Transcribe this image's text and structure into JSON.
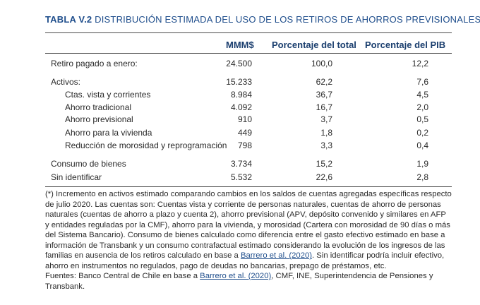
{
  "title": {
    "tag": "TABLA V.2",
    "caption": "DISTRIBUCIÓN ESTIMADA DEL USO DE LOS RETIROS DE AHORROS PREVISIONALES (*)"
  },
  "table": {
    "columns": [
      "MMM$",
      "Porcentaje del total",
      "Porcentaje del PIB"
    ],
    "rows": [
      {
        "label": "Retiro pagado a enero:",
        "mmm": "24.500",
        "pct_total": "100,0",
        "pct_pib": "12,2"
      },
      {
        "label": "Activos:",
        "mmm": "15.233",
        "pct_total": "62,2",
        "pct_pib": "7,6"
      },
      {
        "label": "Ctas. vista y corrientes",
        "mmm": "8.984",
        "pct_total": "36,7",
        "pct_pib": "4,5"
      },
      {
        "label": "Ahorro tradicional",
        "mmm": "4.092",
        "pct_total": "16,7",
        "pct_pib": "2,0"
      },
      {
        "label": "Ahorro previsional",
        "mmm": "910",
        "pct_total": "3,7",
        "pct_pib": "0,5"
      },
      {
        "label": "Ahorro para la vivienda",
        "mmm": "449",
        "pct_total": "1,8",
        "pct_pib": "0,2"
      },
      {
        "label": "Reducción de morosidad y reprogramación",
        "mmm": "798",
        "pct_total": "3,3",
        "pct_pib": "0,4"
      },
      {
        "label": "Consumo de bienes",
        "mmm": "3.734",
        "pct_total": "15,2",
        "pct_pib": "1,9"
      },
      {
        "label": "Sin identificar",
        "mmm": "5.532",
        "pct_total": "22,6",
        "pct_pib": "2,8"
      }
    ]
  },
  "notes": {
    "note_before_link": "(*) Incremento en activos estimado comparando cambios en los saldos de cuentas agregadas específicas respecto de julio 2020. Las cuentas son: Cuentas vista y corriente de personas naturales, cuentas de ahorro de personas naturales (cuentas de ahorro a plazo y cuenta 2), ahorro previsional (APV, depósito convenido y similares en AFP y entidades reguladas por la CMF), ahorro para la vivienda, y morosidad (Cartera con morosidad de 90 días o más del Sistema Bancario). Consumo de bienes calculado como diferencia entre el gasto efectivo estimado en base a información de Transbank y un consumo contrafactual estimado considerando la evolución de los ingresos de las familias en ausencia de los retiros calculado en base a",
    "note_link": "Barrero et al. (2020)",
    "note_after_link": ". Sin identificar podría incluir efectivo, ahorro en instrumentos no regulados, pago de deudas no bancarias, prepago de préstamos, etc.",
    "sources_before_link": "Fuentes: Banco Central de Chile en base a",
    "sources_link": "Barrero et al. (2020)",
    "sources_after_link": ", CMF, INE, Superintendencia de Pensiones y Transbank."
  }
}
